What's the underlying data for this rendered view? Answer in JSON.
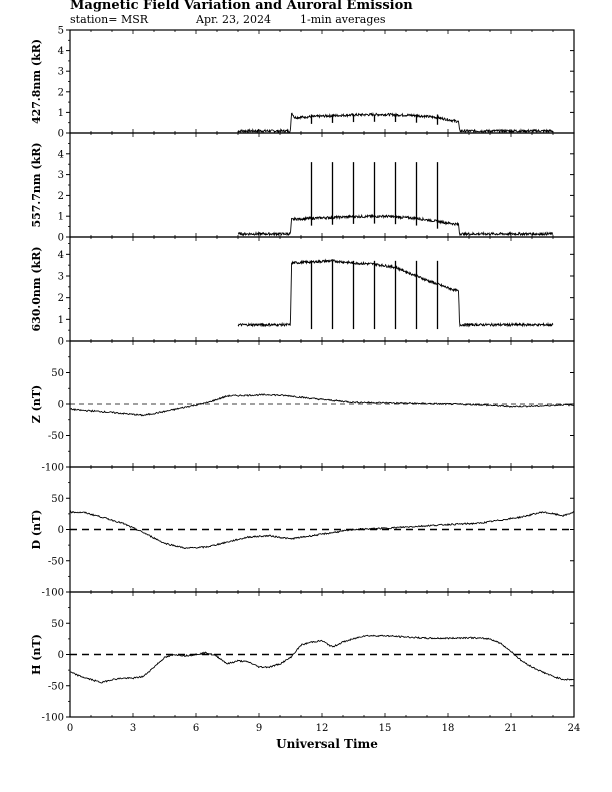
{
  "header": {
    "title": "Magnetic Field Variation and Auroral Emission",
    "station": "station= MSR",
    "date": "Apr. 23, 2024",
    "averaging": "1-min averages"
  },
  "chart_data": {
    "type": "line",
    "xlabel": "Universal Time",
    "xlim": [
      0,
      24
    ],
    "xticks": [
      "0",
      "3",
      "6",
      "9",
      "12",
      "15",
      "18",
      "21",
      "24"
    ],
    "panels": [
      {
        "id": "p4278",
        "ylabel": "427.8nm (kR)",
        "ylim": [
          0,
          5
        ],
        "yticks": [
          "0",
          "1",
          "2",
          "3",
          "4",
          "5"
        ],
        "zero_line": "none",
        "series": {
          "x": [
            8.0,
            10.5,
            10.55,
            10.7,
            12,
            13.5,
            15,
            16.5,
            17.5,
            18.5,
            18.55,
            23.0
          ],
          "y": [
            0.1,
            0.1,
            1.0,
            0.75,
            0.82,
            0.88,
            0.9,
            0.85,
            0.75,
            0.55,
            0.1,
            0.1
          ]
        },
        "spikes": {
          "x": [
            11.5,
            12.5,
            13.5,
            14.5,
            15.5,
            16.5,
            17.5
          ],
          "top": 0.9
        }
      },
      {
        "id": "p5577",
        "ylabel": "557.7nm (kR)",
        "ylim": [
          0,
          5
        ],
        "yticks": [
          "0",
          "1",
          "2",
          "3",
          "4"
        ],
        "zero_line": "none",
        "series": {
          "x": [
            8.0,
            10.5,
            10.55,
            12,
            13.5,
            15,
            16.5,
            17.5,
            18.5,
            18.55,
            23.0
          ],
          "y": [
            0.15,
            0.15,
            0.85,
            0.92,
            0.98,
            1.0,
            0.9,
            0.75,
            0.6,
            0.15,
            0.15
          ]
        },
        "spikes": {
          "x": [
            11.5,
            12.5,
            13.5,
            14.5,
            15.5,
            16.5,
            17.5
          ],
          "top": 3.6
        }
      },
      {
        "id": "p6300",
        "ylabel": "630.0nm (kR)",
        "ylim": [
          0,
          4.8
        ],
        "yticks": [
          "0",
          "1",
          "2",
          "3",
          "4"
        ],
        "zero_line": "none",
        "series": {
          "x": [
            8.0,
            10.5,
            10.55,
            11.5,
            12.5,
            13.5,
            14.5,
            15.5,
            16.0,
            17.0,
            18.0,
            18.5,
            18.55,
            23.0
          ],
          "y": [
            0.75,
            0.75,
            3.6,
            3.65,
            3.7,
            3.6,
            3.55,
            3.4,
            3.2,
            2.8,
            2.45,
            2.3,
            0.75,
            0.75
          ]
        },
        "spikes": {
          "x": [
            11.5,
            12.5,
            13.5,
            14.5,
            15.5,
            16.5,
            17.5
          ],
          "top": 3.7,
          "bottom": 0.55
        }
      },
      {
        "id": "pZ",
        "ylabel": "Z (nT)",
        "ylim": [
          -100,
          100
        ],
        "yticks": [
          "-100",
          "-50",
          "0",
          "50"
        ],
        "zero_line": "thin",
        "series": {
          "x": [
            0,
            0.5,
            1.5,
            2.5,
            3.5,
            4.5,
            5.5,
            6.5,
            7.5,
            8.5,
            9.5,
            10.5,
            11.5,
            12.5,
            13.5,
            15,
            16.5,
            18,
            19.5,
            21,
            22.5,
            23.5,
            24
          ],
          "y": [
            -8,
            -10,
            -12,
            -15,
            -18,
            -12,
            -5,
            2,
            13,
            14,
            15,
            13,
            9,
            6,
            3,
            2,
            1,
            0,
            -1,
            -4,
            -3,
            -1,
            -2
          ]
        }
      },
      {
        "id": "pD",
        "ylabel": "D (nT)",
        "ylim": [
          -100,
          100
        ],
        "yticks": [
          "-100",
          "-50",
          "0",
          "50"
        ],
        "zero_line": "thick",
        "series": {
          "x": [
            0,
            0.7,
            1.5,
            2.5,
            3.5,
            4.5,
            5.5,
            6.5,
            7.5,
            8.5,
            9.5,
            10.5,
            11.5,
            12.5,
            13.5,
            15,
            16.5,
            18,
            19.5,
            20.5,
            21.5,
            22.5,
            23.5,
            24
          ],
          "y": [
            28,
            27,
            20,
            10,
            -5,
            -22,
            -30,
            -28,
            -20,
            -12,
            -10,
            -15,
            -10,
            -5,
            0,
            2,
            5,
            8,
            10,
            15,
            20,
            28,
            22,
            28
          ]
        }
      },
      {
        "id": "pH",
        "ylabel": "H (nT)",
        "ylim": [
          -100,
          100
        ],
        "yticks": [
          "-100",
          "-50",
          "0",
          "50"
        ],
        "zero_line": "thick",
        "series": {
          "x": [
            0,
            0.5,
            1.0,
            1.5,
            2.0,
            2.5,
            3.0,
            3.5,
            4.0,
            4.5,
            5.0,
            5.5,
            6.0,
            6.5,
            7.0,
            7.5,
            8.0,
            8.5,
            9.0,
            9.5,
            10.0,
            10.5,
            11.0,
            11.5,
            12.0,
            12.5,
            13.0,
            13.5,
            14.0,
            15.0,
            16.0,
            17.0,
            18.0,
            19.0,
            20.0,
            20.5,
            21.0,
            21.5,
            22.0,
            22.5,
            23.0,
            23.5,
            24.0
          ],
          "y": [
            -28,
            -35,
            -40,
            -45,
            -40,
            -38,
            -38,
            -35,
            -20,
            -5,
            0,
            -2,
            0,
            3,
            -3,
            -15,
            -10,
            -12,
            -20,
            -20,
            -15,
            -5,
            15,
            20,
            22,
            12,
            20,
            25,
            30,
            30,
            28,
            26,
            26,
            27,
            25,
            18,
            5,
            -10,
            -20,
            -28,
            -35,
            -40,
            -40
          ]
        }
      }
    ]
  }
}
